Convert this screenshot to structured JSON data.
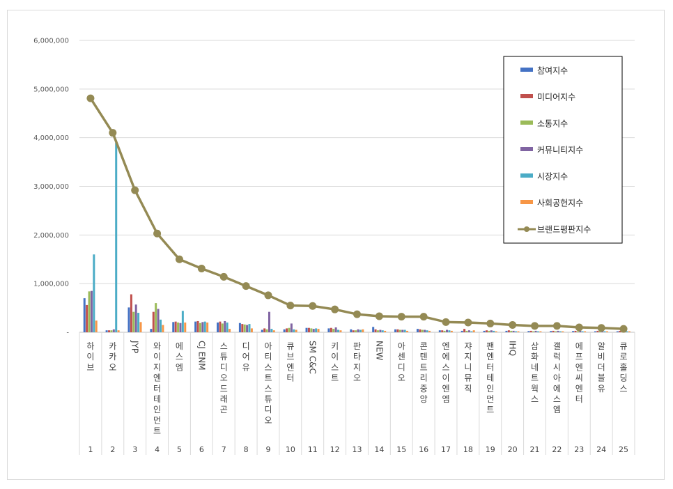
{
  "chart_data": {
    "type": "bar",
    "title": "",
    "xlabel": "",
    "ylabel": "",
    "ylim": [
      0,
      6000000
    ],
    "y_ticks": [
      0,
      1000000,
      2000000,
      3000000,
      4000000,
      5000000,
      6000000
    ],
    "y_tick_labels": [
      "-",
      "1,000,000",
      "2,000,000",
      "3,000,000",
      "4,000,000",
      "5,000,000",
      "6,000,000"
    ],
    "grid": true,
    "legend_position": "top-right",
    "ranks": [
      "1",
      "2",
      "3",
      "4",
      "5",
      "6",
      "7",
      "8",
      "9",
      "10",
      "11",
      "12",
      "13",
      "14",
      "15",
      "16",
      "17",
      "18",
      "19",
      "20",
      "21",
      "22",
      "23",
      "24",
      "25"
    ],
    "categories": [
      "하이브",
      "카카오",
      "JYP",
      "와이지엔터테인먼트",
      "에스엠",
      "CJ ENM",
      "스튜디오드래곤",
      "디어유",
      "아티스트스튜디오",
      "큐브엔터",
      "SM C&C",
      "키이스트",
      "판타지오",
      "NEW",
      "아센디오",
      "콘텐트리중앙",
      "엔에스이엔엠",
      "쟈지니뮤직",
      "팬엔터테인먼트",
      "IHQ",
      "삼화네트웍스",
      "갤럭시아에스엠",
      "에프엔씨엔터",
      "알비더블유",
      "큐로홀딩스"
    ],
    "series": [
      {
        "name": "참여지수",
        "color": "#4472c4",
        "kind": "bar",
        "values": [
          700000,
          40000,
          510000,
          70000,
          210000,
          220000,
          200000,
          190000,
          50000,
          60000,
          90000,
          80000,
          60000,
          110000,
          60000,
          70000,
          40000,
          30000,
          30000,
          30000,
          25000,
          25000,
          25000,
          20000,
          20000
        ]
      },
      {
        "name": "미디어지수",
        "color": "#c0504d",
        "kind": "bar",
        "values": [
          560000,
          40000,
          780000,
          420000,
          220000,
          230000,
          220000,
          170000,
          80000,
          80000,
          90000,
          90000,
          40000,
          60000,
          60000,
          60000,
          40000,
          70000,
          40000,
          40000,
          30000,
          30000,
          30000,
          30000,
          30000
        ]
      },
      {
        "name": "소통지수",
        "color": "#9bbb59",
        "kind": "bar",
        "values": [
          840000,
          40000,
          420000,
          600000,
          200000,
          190000,
          180000,
          160000,
          60000,
          90000,
          80000,
          70000,
          40000,
          40000,
          50000,
          50000,
          30000,
          30000,
          30000,
          30000,
          20000,
          20000,
          20000,
          20000,
          20000
        ]
      },
      {
        "name": "커뮤니티지수",
        "color": "#8064a2",
        "kind": "bar",
        "values": [
          850000,
          60000,
          570000,
          480000,
          190000,
          210000,
          230000,
          150000,
          420000,
          180000,
          70000,
          100000,
          60000,
          50000,
          50000,
          50000,
          50000,
          40000,
          40000,
          30000,
          30000,
          30000,
          30000,
          20000,
          20000
        ]
      },
      {
        "name": "시장지수",
        "color": "#4bacc6",
        "kind": "bar",
        "values": [
          1600000,
          3900000,
          400000,
          260000,
          440000,
          220000,
          200000,
          170000,
          70000,
          60000,
          80000,
          50000,
          50000,
          40000,
          50000,
          40000,
          40000,
          20000,
          30000,
          20000,
          20000,
          20000,
          20000,
          20000,
          20000
        ]
      },
      {
        "name": "사회공헌지수",
        "color": "#f79646",
        "kind": "bar",
        "values": [
          240000,
          40000,
          210000,
          150000,
          200000,
          200000,
          70000,
          80000,
          40000,
          50000,
          70000,
          40000,
          60000,
          30000,
          30000,
          30000,
          30000,
          40000,
          20000,
          20000,
          20000,
          20000,
          20000,
          20000,
          20000
        ]
      },
      {
        "name": "브랜드평판지수",
        "color": "#948a54",
        "kind": "line",
        "values": [
          4810000,
          4100000,
          2920000,
          2030000,
          1500000,
          1310000,
          1140000,
          950000,
          760000,
          550000,
          540000,
          470000,
          370000,
          330000,
          320000,
          320000,
          210000,
          200000,
          180000,
          150000,
          130000,
          130000,
          100000,
          90000,
          70000
        ]
      }
    ]
  }
}
